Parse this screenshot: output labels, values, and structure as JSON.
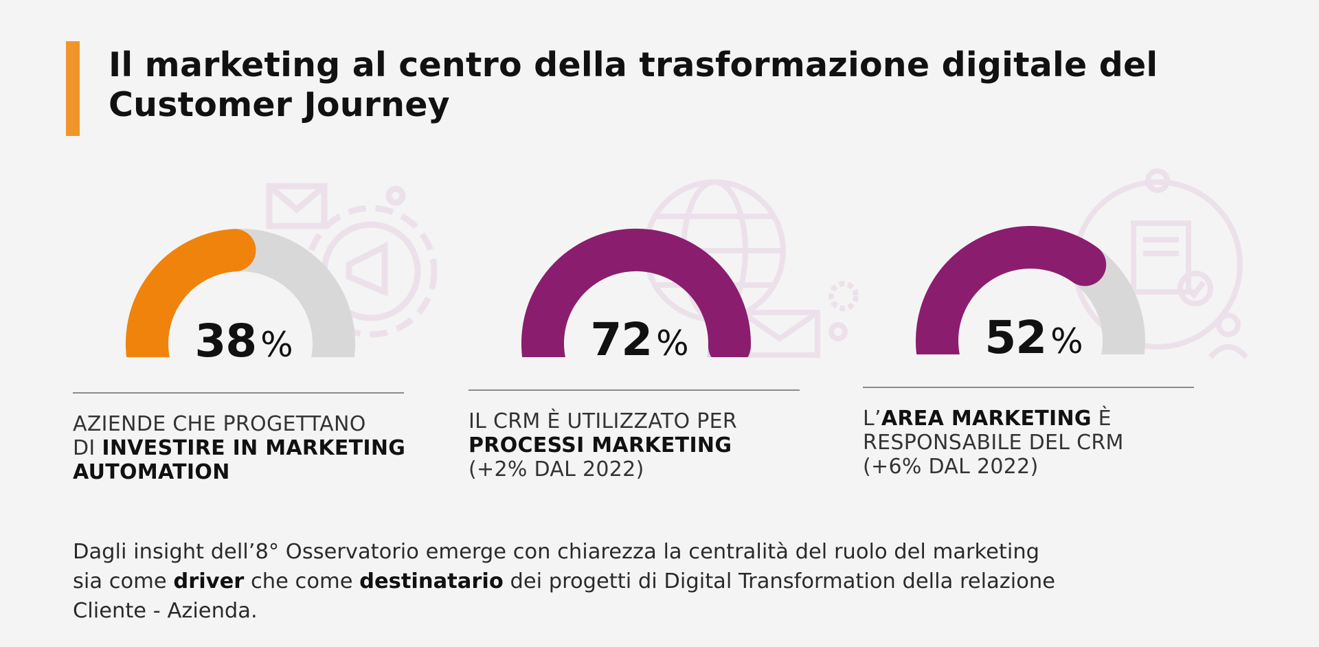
{
  "title": {
    "line1": "Il marketing al centro della trasformazione digitale del",
    "line2": "Customer Journey"
  },
  "colors": {
    "accent": "#f0952c",
    "orange": "#f0830c",
    "purple": "#8b1d6e",
    "track": "#d8d8d8",
    "icon_tint": "#ece1ea"
  },
  "chart_data": [
    {
      "type": "gauge",
      "value": 38,
      "unit": "%",
      "color": "#f0830c",
      "caption": {
        "line1": "AZIENDE CHE PROGETTANO",
        "line2_prefix": "DI ",
        "line2_bold": "INVESTIRE IN MARKETING",
        "line3_bold": "AUTOMATION"
      }
    },
    {
      "type": "gauge",
      "value": 72,
      "unit": "%",
      "color": "#8b1d6e",
      "caption": {
        "line1": "IL CRM È UTILIZZATO PER",
        "line2_bold": "PROCESSI MARKETING",
        "line3": "(+2% DAL 2022)"
      }
    },
    {
      "type": "gauge",
      "value": 52,
      "unit": "%",
      "color": "#8b1d6e",
      "caption": {
        "line1_prefix": "L’",
        "line1_bold": "AREA MARKETING",
        "line1_suffix": " È",
        "line2": "RESPONSABILE DEL CRM",
        "line3": "(+6% DAL 2022)"
      }
    }
  ],
  "note": {
    "line1": "Dagli insight dell’8° Osservatorio emerge con chiarezza la centralità del ruolo del marketing",
    "line2_a": "sia come ",
    "line2_b": "driver",
    "line2_c": " che come ",
    "line2_d": "destinatario",
    "line2_e": " dei progetti di Digital Transformation della relazione",
    "line3": "Cliente - Azienda."
  },
  "icons": [
    "envelope-icon",
    "gear-megaphone-icon",
    "globe-icon",
    "email-icon",
    "gears-icon",
    "people-document-icon"
  ]
}
